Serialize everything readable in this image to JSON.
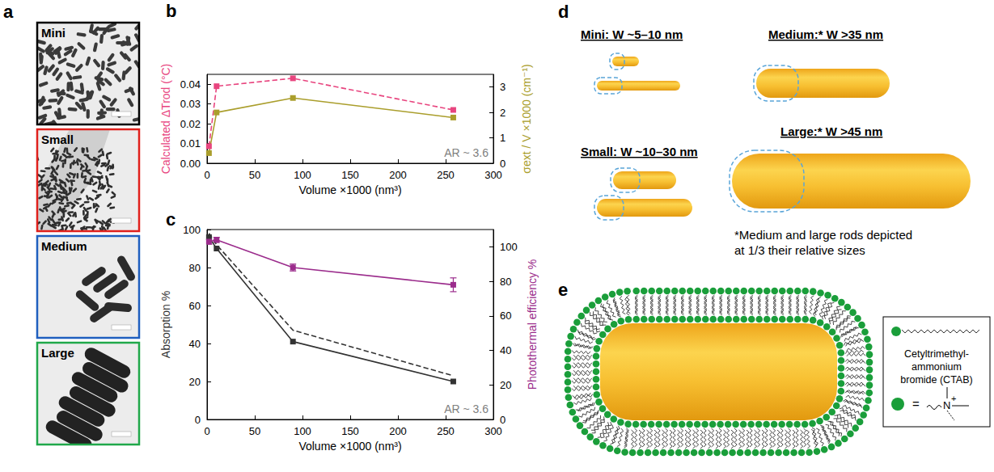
{
  "chart_data": [
    {
      "letter": "b",
      "type": "line",
      "xlabel": "Volume ×1000 (nm³)",
      "ylabel": "Calculated ΔTrod (°C)",
      "y2label": "σext / V ×1000 (cm⁻¹)",
      "annotation": "AR ~ 3.6",
      "x": [
        2,
        10,
        90,
        258
      ],
      "xlim": [
        0,
        300
      ],
      "xticks": [
        0,
        50,
        100,
        150,
        200,
        250,
        300
      ],
      "ylim": [
        0,
        0.045
      ],
      "yticks": [
        {
          "value": 0,
          "label": "0.00"
        },
        {
          "value": 0.01,
          "label": "0.01"
        },
        {
          "value": 0.02,
          "label": "0.02"
        },
        {
          "value": 0.03,
          "label": "0.03"
        },
        {
          "value": 0.04,
          "label": "0.04"
        }
      ],
      "y2lim": [
        0,
        3.5
      ],
      "y2ticks": [
        0,
        1,
        2,
        3
      ],
      "series": [
        {
          "color": "#e8457f",
          "line_style": "dashed",
          "marker": "square",
          "values": [
            0.0086,
            0.039,
            0.043,
            0.027
          ]
        },
        {
          "color": "#aa9e2c",
          "axis": "y2",
          "line_style": "solid",
          "marker": "square",
          "values": [
            0.4,
            2.0,
            2.57,
            1.8
          ]
        }
      ]
    },
    {
      "letter": "c",
      "type": "line",
      "xlabel": "Volume ×1000 (nm³)",
      "ylabel": "Absorption %",
      "y2label": "Photothermal efficiency %",
      "annotation": "AR ~ 3.6",
      "x": [
        2,
        10,
        90,
        258
      ],
      "xlim": [
        0,
        300
      ],
      "xticks": [
        0,
        50,
        100,
        150,
        200,
        250,
        300
      ],
      "ylim": [
        0,
        100
      ],
      "yticks": [
        0,
        20,
        40,
        60,
        80,
        100
      ],
      "y2lim": [
        0,
        110
      ],
      "y2ticks": [
        0,
        20,
        40,
        60,
        80,
        100
      ],
      "series": [
        {
          "color": "#333333",
          "line_style": "solid",
          "marker": "square",
          "values": [
            96,
            90,
            41,
            20
          ]
        },
        {
          "color": "#333333",
          "line_style": "dashed",
          "marker": "none",
          "values": [
            98,
            92,
            47,
            23
          ]
        },
        {
          "color": "#9b2c8c",
          "axis": "y2",
          "line_style": "solid",
          "marker": "square",
          "values": [
            103,
            104,
            88,
            78
          ],
          "errors": [
            1.5,
            1.5,
            2,
            4
          ]
        }
      ]
    }
  ],
  "panel_a": {
    "letter": "a",
    "images": [
      {
        "label": "Mini",
        "color": "#000000"
      },
      {
        "label": "Small",
        "color": "#e0201c"
      },
      {
        "label": "Medium",
        "color": "#1f5fbf"
      },
      {
        "label": "Large",
        "color": "#20a84a"
      }
    ]
  },
  "panel_d": {
    "letter": "d",
    "titles": [
      "Mini: W ~5–10 nm",
      "Small: W ~10–30 nm",
      "Medium:* W >35 nm",
      "Large:* W >45 nm"
    ],
    "note": "*Medium and large rods depicted at 1/3 their relative sizes"
  },
  "panel_e": {
    "letter": "e",
    "legend_lines": [
      "Cetyltrimethyl-",
      "ammonium",
      "bromide (CTAB)"
    ],
    "equals": "=",
    "atom": "N",
    "charge": "+"
  }
}
